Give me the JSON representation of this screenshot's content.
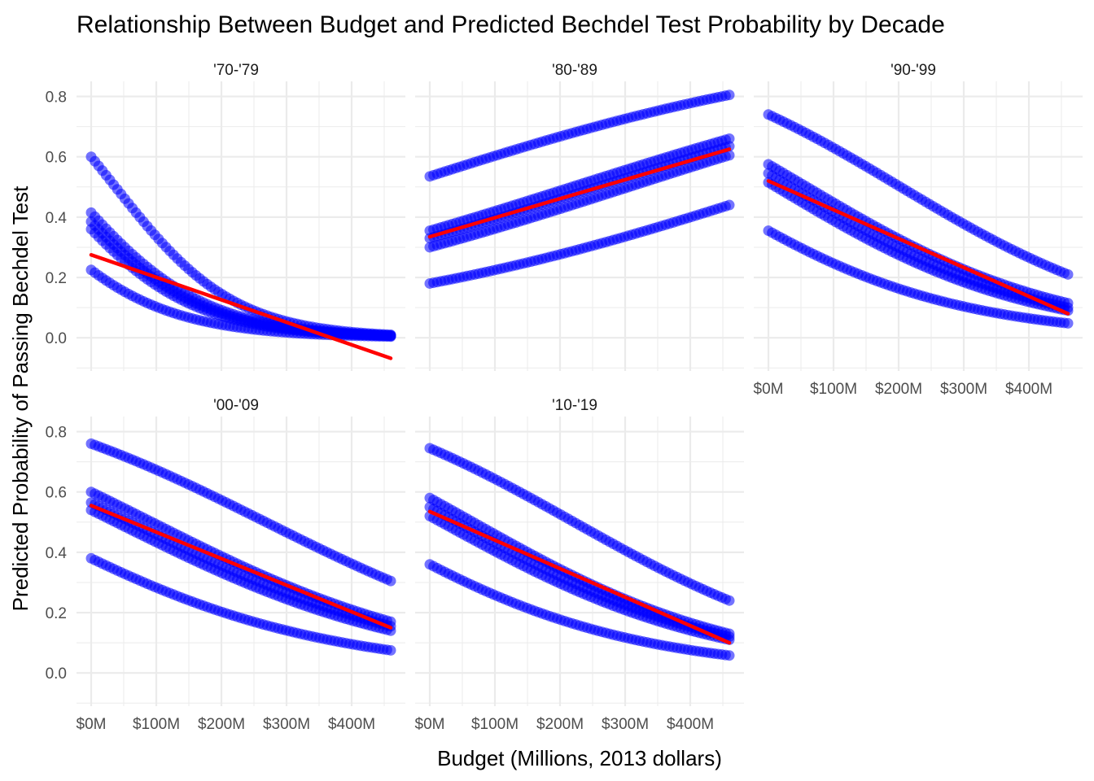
{
  "chart_data": {
    "type": "scatter",
    "title": "Relationship Between Budget and Predicted Bechdel Test Probability by Decade",
    "xlabel": "Budget (Millions, 2013 dollars)",
    "ylabel": "Predicted Probability of Passing Bechdel Test",
    "x_range": [
      0,
      460
    ],
    "ylim": [
      -0.11,
      0.85
    ],
    "x_ticks": [
      0,
      100,
      200,
      300,
      400
    ],
    "x_tick_labels": [
      "$0M",
      "$100M",
      "$200M",
      "$300M",
      "$400M"
    ],
    "y_ticks": [
      0.0,
      0.2,
      0.4,
      0.6,
      0.8
    ],
    "y_tick_labels": [
      "0.0",
      "0.2",
      "0.4",
      "0.6",
      "0.8"
    ],
    "grid": true,
    "colors": {
      "points": "#0000ff",
      "trend": "#ff0000",
      "grid": "#ebebeb"
    },
    "panels": [
      {
        "label": "'70-'79",
        "curves": [
          {
            "start": 0.6,
            "end": 0.01
          },
          {
            "start": 0.415,
            "end": 0.008
          },
          {
            "start": 0.385,
            "end": 0.007
          },
          {
            "start": 0.36,
            "end": 0.006
          },
          {
            "start": 0.225,
            "end": 0.004
          }
        ],
        "trend": {
          "start": 0.275,
          "end": -0.068
        }
      },
      {
        "label": "'80-'89",
        "curves": [
          {
            "start": 0.535,
            "end": 0.805
          },
          {
            "start": 0.355,
            "end": 0.66
          },
          {
            "start": 0.33,
            "end": 0.635
          },
          {
            "start": 0.3,
            "end": 0.605
          },
          {
            "start": 0.18,
            "end": 0.44
          }
        ],
        "trend": {
          "start": 0.335,
          "end": 0.625
        }
      },
      {
        "label": "'90-'99",
        "curves": [
          {
            "start": 0.74,
            "end": 0.21
          },
          {
            "start": 0.575,
            "end": 0.115
          },
          {
            "start": 0.545,
            "end": 0.1
          },
          {
            "start": 0.515,
            "end": 0.09
          },
          {
            "start": 0.355,
            "end": 0.048
          }
        ],
        "trend": {
          "start": 0.52,
          "end": 0.08
        }
      },
      {
        "label": "'00-'09",
        "curves": [
          {
            "start": 0.76,
            "end": 0.305
          },
          {
            "start": 0.6,
            "end": 0.17
          },
          {
            "start": 0.565,
            "end": 0.155
          },
          {
            "start": 0.54,
            "end": 0.14
          },
          {
            "start": 0.38,
            "end": 0.075
          }
        ],
        "trend": {
          "start": 0.555,
          "end": 0.15
        }
      },
      {
        "label": "'10-'19",
        "curves": [
          {
            "start": 0.745,
            "end": 0.24
          },
          {
            "start": 0.58,
            "end": 0.13
          },
          {
            "start": 0.55,
            "end": 0.12
          },
          {
            "start": 0.52,
            "end": 0.11
          },
          {
            "start": 0.36,
            "end": 0.058
          }
        ],
        "trend": {
          "start": 0.535,
          "end": 0.1
        }
      }
    ]
  }
}
